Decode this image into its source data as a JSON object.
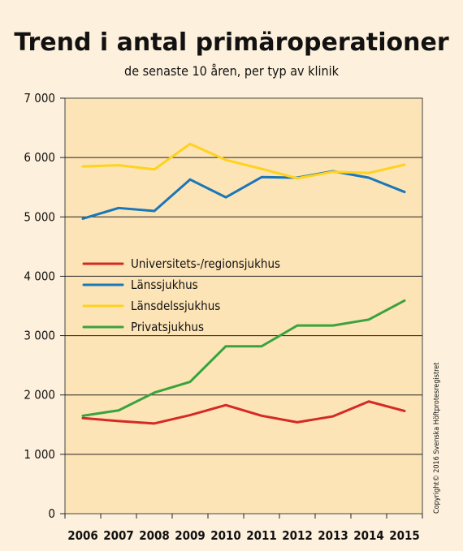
{
  "chart_data": {
    "type": "line",
    "title": "Trend i antal primäroperationer",
    "subtitle": "de senaste 10 åren, per typ av klinik",
    "x": [
      "2006",
      "2007",
      "2008",
      "2009",
      "2010",
      "2011",
      "2012",
      "2013",
      "2014",
      "2015"
    ],
    "yticks": [
      "0",
      "1 000",
      "2 000",
      "3 000",
      "4 000",
      "5 000",
      "6 000",
      "7 000"
    ],
    "ylim": [
      0,
      7000
    ],
    "grid": true,
    "legend_position": "center-left",
    "background_color": "#fce4b6",
    "series": [
      {
        "name": "Universitets-/regionsjukhus",
        "color": "#d42a25",
        "values": [
          1610,
          1560,
          1520,
          1660,
          1830,
          1650,
          1540,
          1640,
          1890,
          1730
        ]
      },
      {
        "name": "Länssjukhus",
        "color": "#1b76b8",
        "values": [
          4970,
          5150,
          5100,
          5630,
          5330,
          5670,
          5660,
          5770,
          5660,
          5420
        ]
      },
      {
        "name": "Länsdelssjukhus",
        "color": "#ffd21e",
        "values": [
          5850,
          5870,
          5800,
          6230,
          5960,
          5810,
          5650,
          5760,
          5740,
          5880
        ]
      },
      {
        "name": "Privatsjukhus",
        "color": "#3aa23e",
        "values": [
          1650,
          1740,
          2040,
          2220,
          2820,
          2820,
          3170,
          3170,
          3270,
          3590
        ]
      }
    ],
    "copyright": "Copyright© 2016 Svenska Höftprotesregistret"
  }
}
